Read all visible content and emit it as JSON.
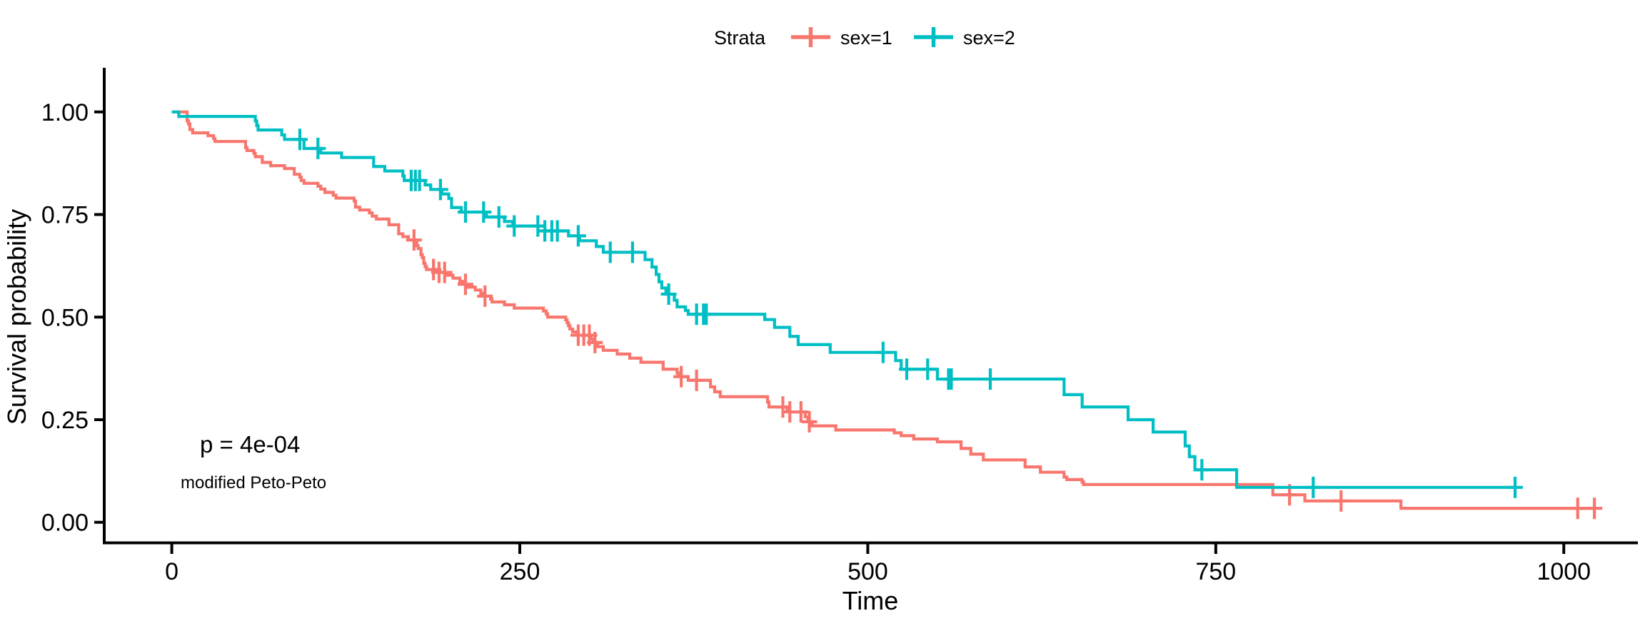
{
  "legend": {
    "title": "Strata",
    "items": [
      {
        "label": "sex=1",
        "color": "#F8766D"
      },
      {
        "label": "sex=2",
        "color": "#00BFC4"
      }
    ],
    "position": "top"
  },
  "annotation": {
    "pvalue": "p = 4e-04",
    "method": "modified Peto-Peto"
  },
  "chart_data": {
    "type": "line",
    "subtype": "kaplan-meier-step",
    "title": "",
    "xlabel": "Time",
    "ylabel": "Survival probability",
    "xlim": [
      0,
      1022
    ],
    "ylim": [
      0,
      1
    ],
    "grid": false,
    "legend_position": "top",
    "censor_marker": "+",
    "xticks": {
      "values": [
        0,
        250,
        500,
        750,
        1000
      ],
      "labels": [
        "0",
        "250",
        "500",
        "750",
        "1000"
      ]
    },
    "yticks": {
      "values": [
        0,
        0.25,
        0.5,
        0.75,
        1.0
      ],
      "labels": [
        "0.00",
        "0.25",
        "0.50",
        "0.75",
        "1.00"
      ]
    },
    "series": [
      {
        "name": "sex=1",
        "color": "#F8766D",
        "steps": [
          [
            0,
            1
          ],
          [
            11,
            0.978
          ],
          [
            12,
            0.971
          ],
          [
            13,
            0.957
          ],
          [
            15,
            0.949
          ],
          [
            26,
            0.942
          ],
          [
            30,
            0.935
          ],
          [
            31,
            0.928
          ],
          [
            53,
            0.913
          ],
          [
            54,
            0.906
          ],
          [
            59,
            0.899
          ],
          [
            60,
            0.891
          ],
          [
            65,
            0.877
          ],
          [
            71,
            0.869
          ],
          [
            81,
            0.862
          ],
          [
            88,
            0.848
          ],
          [
            92,
            0.841
          ],
          [
            93,
            0.833
          ],
          [
            95,
            0.826
          ],
          [
            105,
            0.819
          ],
          [
            107,
            0.812
          ],
          [
            110,
            0.804
          ],
          [
            116,
            0.797
          ],
          [
            118,
            0.79
          ],
          [
            131,
            0.783
          ],
          [
            132,
            0.768
          ],
          [
            135,
            0.761
          ],
          [
            142,
            0.754
          ],
          [
            144,
            0.746
          ],
          [
            147,
            0.739
          ],
          [
            156,
            0.725
          ],
          [
            163,
            0.703
          ],
          [
            166,
            0.696
          ],
          [
            170,
            0.688
          ],
          [
            175,
            0.681
          ],
          [
            176,
            0.674
          ],
          [
            177,
            0.667
          ],
          [
            179,
            0.652
          ],
          [
            180,
            0.645
          ],
          [
            181,
            0.631
          ],
          [
            182,
            0.623
          ],
          [
            183,
            0.616
          ],
          [
            189,
            0.609
          ],
          [
            197,
            0.602
          ],
          [
            202,
            0.595
          ],
          [
            207,
            0.587
          ],
          [
            210,
            0.58
          ],
          [
            212,
            0.573
          ],
          [
            218,
            0.566
          ],
          [
            222,
            0.558
          ],
          [
            223,
            0.551
          ],
          [
            229,
            0.544
          ],
          [
            230,
            0.537
          ],
          [
            239,
            0.53
          ],
          [
            246,
            0.522
          ],
          [
            267,
            0.515
          ],
          [
            269,
            0.508
          ],
          [
            270,
            0.5
          ],
          [
            283,
            0.493
          ],
          [
            284,
            0.486
          ],
          [
            285,
            0.479
          ],
          [
            286,
            0.471
          ],
          [
            288,
            0.464
          ],
          [
            291,
            0.456
          ],
          [
            301,
            0.447
          ],
          [
            303,
            0.438
          ],
          [
            306,
            0.428
          ],
          [
            310,
            0.419
          ],
          [
            320,
            0.41
          ],
          [
            329,
            0.4
          ],
          [
            337,
            0.39
          ],
          [
            353,
            0.373
          ],
          [
            363,
            0.364
          ],
          [
            364,
            0.355
          ],
          [
            371,
            0.346
          ],
          [
            387,
            0.33
          ],
          [
            390,
            0.318
          ],
          [
            394,
            0.306
          ],
          [
            428,
            0.293
          ],
          [
            429,
            0.281
          ],
          [
            442,
            0.269
          ],
          [
            455,
            0.257
          ],
          [
            457,
            0.245
          ],
          [
            460,
            0.235
          ],
          [
            477,
            0.225
          ],
          [
            519,
            0.218
          ],
          [
            524,
            0.211
          ],
          [
            533,
            0.203
          ],
          [
            550,
            0.196
          ],
          [
            567,
            0.18
          ],
          [
            574,
            0.166
          ],
          [
            583,
            0.152
          ],
          [
            613,
            0.135
          ],
          [
            624,
            0.122
          ],
          [
            641,
            0.11
          ],
          [
            643,
            0.104
          ],
          [
            654,
            0.098
          ],
          [
            655,
            0.092
          ],
          [
            791,
            0.067
          ],
          [
            814,
            0.052
          ],
          [
            883,
            0.034
          ],
          [
            1022,
            0.034
          ]
        ],
        "censor_times": [
          174,
          188,
          192,
          196,
          211,
          225,
          292,
          296,
          300,
          304,
          366,
          377,
          439,
          444,
          452,
          458,
          803,
          840,
          1010,
          1022
        ]
      },
      {
        "name": "sex=2",
        "color": "#00BFC4",
        "steps": [
          [
            0,
            1
          ],
          [
            5,
            0.989
          ],
          [
            60,
            0.978
          ],
          [
            61,
            0.967
          ],
          [
            62,
            0.956
          ],
          [
            79,
            0.944
          ],
          [
            81,
            0.933
          ],
          [
            95,
            0.911
          ],
          [
            107,
            0.9
          ],
          [
            122,
            0.889
          ],
          [
            145,
            0.867
          ],
          [
            153,
            0.856
          ],
          [
            166,
            0.844
          ],
          [
            167,
            0.833
          ],
          [
            182,
            0.822
          ],
          [
            186,
            0.811
          ],
          [
            194,
            0.8
          ],
          [
            199,
            0.789
          ],
          [
            201,
            0.767
          ],
          [
            208,
            0.756
          ],
          [
            226,
            0.744
          ],
          [
            239,
            0.733
          ],
          [
            245,
            0.722
          ],
          [
            268,
            0.71
          ],
          [
            285,
            0.698
          ],
          [
            293,
            0.686
          ],
          [
            305,
            0.672
          ],
          [
            310,
            0.658
          ],
          [
            340,
            0.64
          ],
          [
            345,
            0.622
          ],
          [
            348,
            0.604
          ],
          [
            350,
            0.586
          ],
          [
            352,
            0.571
          ],
          [
            355,
            0.556
          ],
          [
            361,
            0.541
          ],
          [
            363,
            0.525
          ],
          [
            369,
            0.516
          ],
          [
            371,
            0.507
          ],
          [
            426,
            0.494
          ],
          [
            433,
            0.475
          ],
          [
            444,
            0.453
          ],
          [
            450,
            0.433
          ],
          [
            473,
            0.414
          ],
          [
            520,
            0.394
          ],
          [
            524,
            0.373
          ],
          [
            550,
            0.349
          ],
          [
            641,
            0.311
          ],
          [
            654,
            0.281
          ],
          [
            687,
            0.25
          ],
          [
            705,
            0.22
          ],
          [
            728,
            0.186
          ],
          [
            731,
            0.16
          ],
          [
            735,
            0.128
          ],
          [
            765,
            0.085
          ],
          [
            965,
            0.085
          ]
        ],
        "censor_times": [
          92,
          105,
          172,
          175,
          178,
          193,
          211,
          224,
          235,
          246,
          263,
          268,
          273,
          277,
          292,
          315,
          331,
          357,
          377,
          382,
          384,
          511,
          528,
          543,
          558,
          560,
          588,
          740,
          820,
          965
        ]
      }
    ]
  }
}
